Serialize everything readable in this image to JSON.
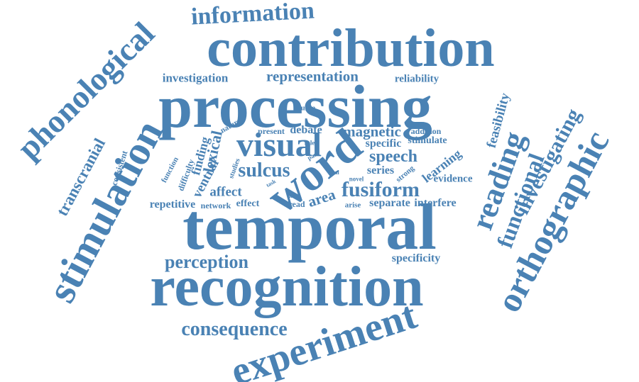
{
  "colors": {
    "word": "#4a82b4",
    "background": "#ffffff"
  },
  "words": {
    "information": "information",
    "contribution": "contribution",
    "phonological": "phonological",
    "investigation": "investigation",
    "representation": "representation",
    "reliability": "reliability",
    "processing": "processing",
    "feasibility": "feasibility",
    "investigating": "investigating",
    "orthographic": "orthographic",
    "transcranial": "transcranial",
    "source": "source",
    "nature": "nature",
    "present": "present",
    "debate": "debate",
    "magnetic": "magnetic",
    "addition": "addition",
    "specific": "specific",
    "stimulate": "stimulate",
    "visual": "visual",
    "speech": "speech",
    "reading": "reading",
    "functional": "functional",
    "stimulation": "stimulation",
    "consistent": "consistent",
    "finding": "finding",
    "lexical": "lexical",
    "function": "function",
    "difficulty": "difficulty",
    "ventral": "ventral",
    "studies": "studies",
    "role": "role",
    "part": "part",
    "sulcus": "sulcus",
    "word": "word",
    "learning": "learning",
    "task": "task",
    "final": "final",
    "series": "series",
    "strong": "strong",
    "evidence": "evidence",
    "novel": "novel",
    "affect": "affect",
    "fusiform": "fusiform",
    "time": "time",
    "read": "read",
    "area": "area",
    "arise": "arise",
    "separate": "separate",
    "interfere": "interfere",
    "repetitive": "repetitive",
    "network": "network",
    "effect": "effect",
    "temporal": "temporal",
    "perception": "perception",
    "specificity": "specificity",
    "recognition": "recognition",
    "consequence": "consequence",
    "experiment": "experiment"
  }
}
